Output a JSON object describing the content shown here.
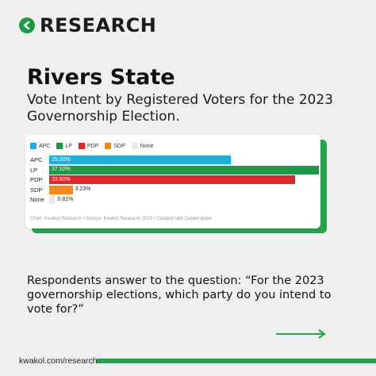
{
  "brand": {
    "text": "RESEARCH",
    "color": "#1a9a45"
  },
  "title": "Rivers State",
  "subtitle": "Vote Intent by Registered Voters for the 2023 Governorship Election.",
  "chart_data": {
    "type": "bar",
    "orientation": "horizontal",
    "categories": [
      "APC",
      "LP",
      "PDP",
      "SDP",
      "None"
    ],
    "values": [
      25.0,
      37.1,
      33.8,
      3.23,
      0.81
    ],
    "value_labels": [
      "25.00%",
      "37.10%",
      "33.80%",
      "3.23%",
      "0.81%"
    ],
    "colors": [
      "#1bb1dc",
      "#1a9a45",
      "#e0262b",
      "#f28a1f",
      "#e8e8e8"
    ],
    "legend": [
      {
        "name": "APC",
        "color": "#1bb1dc"
      },
      {
        "name": "LP",
        "color": "#1a9a45"
      },
      {
        "name": "PDP",
        "color": "#e0262b"
      },
      {
        "name": "SDP",
        "color": "#f28a1f"
      },
      {
        "name": "None",
        "color": "#e8e8e8"
      }
    ],
    "legend_position": "top-left",
    "xlim": [
      0,
      37.1
    ],
    "grid": false,
    "source": "Chart: Kwakol Research • Source: Kwakol Research 2023 • Created with Datawrapper"
  },
  "question": "Respondents answer to the question: “For the 2023 governorship elections, which party do you intend to vote for?”",
  "footer": {
    "url": "kwakol.com/research"
  },
  "accent_color": "#23a34a"
}
